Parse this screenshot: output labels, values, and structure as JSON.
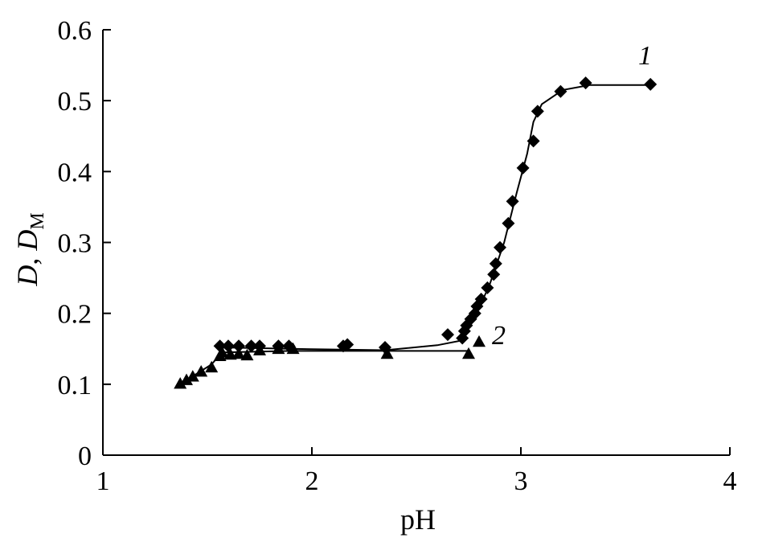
{
  "chart_data": {
    "type": "scatter",
    "title": "",
    "xlabel": "pH",
    "ylabel_parts": {
      "italic_main": "D",
      "separator": ", ",
      "italic_sub_base": "D",
      "subscript": "M"
    },
    "xlim": [
      1,
      4
    ],
    "ylim": [
      0,
      0.6
    ],
    "x_ticks": [
      1,
      2,
      3,
      4
    ],
    "x_tick_labels": [
      "1",
      "2",
      "3",
      "4"
    ],
    "y_ticks": [
      0,
      0.1,
      0.2,
      0.3,
      0.4,
      0.5,
      0.6
    ],
    "y_tick_labels": [
      "0",
      "0.1",
      "0.2",
      "0.3",
      "0.4",
      "0.5",
      "0.6"
    ],
    "grid": false,
    "legend": "none",
    "series": [
      {
        "label": "1",
        "marker": "diamond",
        "color": "#000000",
        "points": [
          [
            1.56,
            0.154
          ],
          [
            1.6,
            0.154
          ],
          [
            1.65,
            0.154
          ],
          [
            1.71,
            0.154
          ],
          [
            1.75,
            0.154
          ],
          [
            1.84,
            0.154
          ],
          [
            1.89,
            0.154
          ],
          [
            2.15,
            0.154
          ],
          [
            2.17,
            0.156
          ],
          [
            2.35,
            0.152
          ],
          [
            2.65,
            0.17
          ],
          [
            2.72,
            0.165
          ],
          [
            2.73,
            0.175
          ],
          [
            2.74,
            0.183
          ],
          [
            2.76,
            0.192
          ],
          [
            2.78,
            0.2
          ],
          [
            2.79,
            0.21
          ],
          [
            2.81,
            0.22
          ],
          [
            2.84,
            0.236
          ],
          [
            2.87,
            0.255
          ],
          [
            2.88,
            0.27
          ],
          [
            2.9,
            0.293
          ],
          [
            2.94,
            0.327
          ],
          [
            2.96,
            0.358
          ],
          [
            3.01,
            0.405
          ],
          [
            3.06,
            0.443
          ],
          [
            3.08,
            0.485
          ],
          [
            3.19,
            0.513
          ],
          [
            3.31,
            0.525
          ],
          [
            3.62,
            0.523
          ]
        ],
        "line": [
          [
            1.56,
            0.152
          ],
          [
            1.9,
            0.15
          ],
          [
            2.35,
            0.148
          ],
          [
            2.6,
            0.155
          ],
          [
            2.72,
            0.162
          ],
          [
            2.78,
            0.195
          ],
          [
            2.85,
            0.24
          ],
          [
            2.92,
            0.3
          ],
          [
            2.98,
            0.37
          ],
          [
            3.03,
            0.425
          ],
          [
            3.06,
            0.47
          ],
          [
            3.1,
            0.495
          ],
          [
            3.2,
            0.515
          ],
          [
            3.33,
            0.522
          ],
          [
            3.62,
            0.522
          ]
        ]
      },
      {
        "label": "2",
        "marker": "triangle",
        "color": "#000000",
        "points": [
          [
            1.37,
            0.101
          ],
          [
            1.4,
            0.106
          ],
          [
            1.43,
            0.111
          ],
          [
            1.47,
            0.118
          ],
          [
            1.52,
            0.124
          ],
          [
            1.56,
            0.14
          ],
          [
            1.57,
            0.145
          ],
          [
            1.61,
            0.142
          ],
          [
            1.65,
            0.143
          ],
          [
            1.69,
            0.141
          ],
          [
            1.75,
            0.148
          ],
          [
            1.84,
            0.15
          ],
          [
            1.91,
            0.15
          ],
          [
            2.36,
            0.143
          ],
          [
            2.75,
            0.143
          ],
          [
            2.8,
            0.16
          ]
        ],
        "line": [
          [
            1.37,
            0.101
          ],
          [
            1.45,
            0.115
          ],
          [
            1.52,
            0.128
          ],
          [
            1.57,
            0.145
          ],
          [
            1.9,
            0.147
          ],
          [
            2.35,
            0.147
          ],
          [
            2.75,
            0.147
          ]
        ]
      }
    ]
  }
}
